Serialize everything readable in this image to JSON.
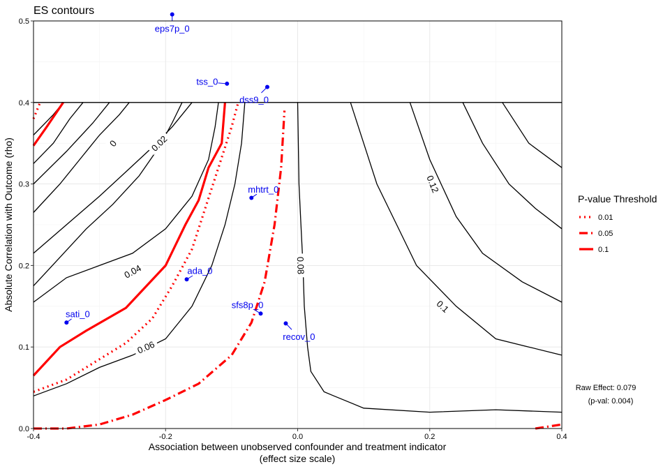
{
  "chart_data": {
    "type": "line",
    "title": "ES contours",
    "xlabel": "Association between unobserved confounder and treatment indicator",
    "xlabel2": "(effect size scale)",
    "ylabel": "Absolute Correlation with Outcome (rho)",
    "xlim": [
      -0.4,
      0.4
    ],
    "ylim": [
      0,
      0.5
    ],
    "x_ticks": [
      -0.4,
      -0.2,
      0.0,
      0.2,
      0.4
    ],
    "x_tick_labels": [
      "-0.4",
      "-0.2",
      "0.0",
      "0.2",
      "0.4"
    ],
    "y_ticks": [
      0.0,
      0.1,
      0.2,
      0.3,
      0.4,
      0.5
    ],
    "y_tick_labels": [
      "0.0",
      "0.1",
      "0.2",
      "0.3",
      "0.4",
      "0.5"
    ],
    "grid": true,
    "hline_y": 0.4,
    "contours": [
      {
        "label": "0",
        "label_at": [
          -0.28,
          0.35
        ],
        "points": [
          [
            -0.4,
            0.175
          ],
          [
            -0.36,
            0.21
          ],
          [
            -0.32,
            0.245
          ],
          [
            -0.28,
            0.275
          ],
          [
            -0.24,
            0.31
          ],
          [
            -0.21,
            0.345
          ],
          [
            -0.19,
            0.375
          ],
          [
            -0.175,
            0.4
          ]
        ]
      },
      {
        "label": "0.02",
        "label_at": [
          -0.21,
          0.35
        ],
        "points": [
          [
            -0.4,
            0.215
          ],
          [
            -0.35,
            0.25
          ],
          [
            -0.3,
            0.285
          ],
          [
            -0.26,
            0.315
          ],
          [
            -0.22,
            0.345
          ],
          [
            -0.19,
            0.37
          ],
          [
            -0.16,
            0.4
          ]
        ]
      },
      {
        "label": "0.04",
        "label_at": [
          -0.25,
          0.193
        ],
        "points": [
          [
            -0.4,
            0.155
          ],
          [
            -0.35,
            0.185
          ],
          [
            -0.3,
            0.2
          ],
          [
            -0.25,
            0.215
          ],
          [
            -0.2,
            0.245
          ],
          [
            -0.16,
            0.285
          ],
          [
            -0.135,
            0.33
          ],
          [
            -0.125,
            0.37
          ],
          [
            -0.12,
            0.4
          ]
        ]
      },
      {
        "label": "0.06",
        "label_at": [
          -0.23,
          0.1
        ],
        "points": [
          [
            -0.4,
            0.04
          ],
          [
            -0.35,
            0.055
          ],
          [
            -0.3,
            0.075
          ],
          [
            -0.25,
            0.09
          ],
          [
            -0.2,
            0.11
          ],
          [
            -0.16,
            0.15
          ],
          [
            -0.13,
            0.2
          ],
          [
            -0.11,
            0.25
          ],
          [
            -0.095,
            0.3
          ],
          [
            -0.085,
            0.35
          ],
          [
            -0.08,
            0.4
          ]
        ]
      },
      {
        "label": "0.08",
        "label_at": [
          0.005,
          0.2
        ],
        "points": [
          [
            0.0,
            0.4
          ],
          [
            0.002,
            0.3
          ],
          [
            0.005,
            0.25
          ],
          [
            0.008,
            0.2
          ],
          [
            0.01,
            0.15
          ],
          [
            0.015,
            0.1
          ],
          [
            0.02,
            0.07
          ],
          [
            0.04,
            0.045
          ],
          [
            0.055,
            0.04
          ],
          [
            0.1,
            0.025
          ],
          [
            0.2,
            0.02
          ],
          [
            0.3,
            0.023
          ],
          [
            0.4,
            0.02
          ]
        ]
      },
      {
        "label": "0.1",
        "label_at": [
          0.22,
          0.15
        ],
        "points": [
          [
            0.08,
            0.4
          ],
          [
            0.1,
            0.35
          ],
          [
            0.12,
            0.3
          ],
          [
            0.15,
            0.25
          ],
          [
            0.18,
            0.2
          ],
          [
            0.24,
            0.15
          ],
          [
            0.3,
            0.11
          ],
          [
            0.35,
            0.1
          ],
          [
            0.4,
            0.09
          ]
        ]
      },
      {
        "label": "0.12",
        "label_at": [
          0.205,
          0.3
        ],
        "points": [
          [
            0.17,
            0.4
          ],
          [
            0.2,
            0.33
          ],
          [
            0.24,
            0.26
          ],
          [
            0.28,
            0.215
          ],
          [
            0.34,
            0.18
          ],
          [
            0.4,
            0.155
          ]
        ]
      },
      {
        "label": "",
        "label_at": null,
        "points": [
          [
            0.25,
            0.4
          ],
          [
            0.28,
            0.35
          ],
          [
            0.32,
            0.3
          ],
          [
            0.36,
            0.27
          ],
          [
            0.4,
            0.245
          ]
        ]
      },
      {
        "label": "",
        "label_at": null,
        "points": [
          [
            0.31,
            0.4
          ],
          [
            0.35,
            0.35
          ],
          [
            0.4,
            0.32
          ]
        ]
      },
      {
        "label": "",
        "label_at": null,
        "points": [
          [
            -0.4,
            0.3
          ],
          [
            -0.35,
            0.34
          ],
          [
            -0.31,
            0.375
          ],
          [
            -0.285,
            0.4
          ]
        ]
      },
      {
        "label": "",
        "label_at": null,
        "points": [
          [
            -0.4,
            0.265
          ],
          [
            -0.36,
            0.3
          ],
          [
            -0.33,
            0.33
          ],
          [
            -0.3,
            0.36
          ],
          [
            -0.27,
            0.385
          ],
          [
            -0.255,
            0.4
          ]
        ]
      },
      {
        "label": "",
        "label_at": null,
        "points": [
          [
            -0.4,
            0.325
          ],
          [
            -0.37,
            0.35
          ],
          [
            -0.345,
            0.38
          ],
          [
            -0.325,
            0.4
          ]
        ]
      },
      {
        "label": "",
        "label_at": null,
        "points": [
          [
            -0.4,
            0.36
          ],
          [
            -0.37,
            0.385
          ],
          [
            -0.355,
            0.4
          ]
        ]
      }
    ],
    "thresholds": [
      {
        "name": "0.01",
        "style": "dotted",
        "points": [
          [
            -0.4,
            0.045
          ],
          [
            -0.35,
            0.06
          ],
          [
            -0.3,
            0.085
          ],
          [
            -0.26,
            0.105
          ],
          [
            -0.22,
            0.135
          ],
          [
            -0.19,
            0.175
          ],
          [
            -0.16,
            0.22
          ],
          [
            -0.14,
            0.27
          ],
          [
            -0.12,
            0.32
          ],
          [
            -0.1,
            0.37
          ],
          [
            -0.09,
            0.4
          ]
        ]
      },
      {
        "name": "0.05",
        "style": "dotdash",
        "points": [
          [
            -0.4,
            0.0
          ],
          [
            -0.35,
            0.0
          ],
          [
            -0.3,
            0.005
          ],
          [
            -0.25,
            0.017
          ],
          [
            -0.2,
            0.035
          ],
          [
            -0.15,
            0.055
          ],
          [
            -0.1,
            0.09
          ],
          [
            -0.07,
            0.13
          ],
          [
            -0.05,
            0.18
          ],
          [
            -0.035,
            0.25
          ],
          [
            -0.025,
            0.32
          ],
          [
            -0.02,
            0.39
          ]
        ]
      },
      {
        "name": "0.1",
        "style": "solid",
        "points": [
          [
            -0.4,
            0.065
          ],
          [
            -0.36,
            0.1
          ],
          [
            -0.32,
            0.12
          ],
          [
            -0.26,
            0.148
          ],
          [
            -0.2,
            0.2
          ],
          [
            -0.17,
            0.25
          ],
          [
            -0.15,
            0.28
          ],
          [
            -0.135,
            0.32
          ],
          [
            -0.115,
            0.35
          ],
          [
            -0.11,
            0.4
          ]
        ]
      },
      {
        "name": "",
        "style": "solid",
        "points": [
          [
            -0.4,
            0.347
          ],
          [
            -0.38,
            0.37
          ],
          [
            -0.355,
            0.4
          ]
        ]
      },
      {
        "name": "",
        "style": "dotted",
        "points": [
          [
            -0.4,
            0.38
          ],
          [
            -0.39,
            0.4
          ]
        ]
      },
      {
        "name": "",
        "style": "dotdash",
        "points": [
          [
            0.36,
            0.0
          ],
          [
            0.4,
            0.005
          ]
        ]
      }
    ],
    "points": [
      {
        "name": "eps7p_0",
        "x": -0.19,
        "y": 0.508,
        "label_at": [
          -0.19,
          0.49
        ]
      },
      {
        "name": "tss_0",
        "x": -0.107,
        "y": 0.423,
        "label_at": [
          -0.137,
          0.425
        ]
      },
      {
        "name": "dss9_0",
        "x": -0.046,
        "y": 0.419,
        "label_at": [
          -0.066,
          0.403
        ]
      },
      {
        "name": "mhtrt_0",
        "x": -0.07,
        "y": 0.283,
        "label_at": [
          -0.052,
          0.293
        ]
      },
      {
        "name": "ada_0",
        "x": -0.168,
        "y": 0.183,
        "label_at": [
          -0.148,
          0.193
        ]
      },
      {
        "name": "sati_0",
        "x": -0.35,
        "y": 0.13,
        "label_at": [
          -0.333,
          0.14
        ]
      },
      {
        "name": "sfs8p_0",
        "x": -0.056,
        "y": 0.141,
        "label_at": [
          -0.076,
          0.151
        ]
      },
      {
        "name": "recov_0",
        "x": -0.018,
        "y": 0.129,
        "label_at": [
          0.002,
          0.112
        ]
      }
    ],
    "legend": {
      "title": "P-value Threshold",
      "placement": "right",
      "entries": [
        {
          "label": "0.01",
          "style": "dotted"
        },
        {
          "label": "0.05",
          "style": "dotdash"
        },
        {
          "label": "0.1",
          "style": "solid"
        }
      ]
    },
    "raw_effect": {
      "line1": "Raw Effect: 0.079",
      "line2": "(p-val: 0.004)"
    }
  },
  "colors": {
    "contour": "#000000",
    "threshold": "#ff0000",
    "point": "#0000ee",
    "grid": "#e6e6e6"
  }
}
